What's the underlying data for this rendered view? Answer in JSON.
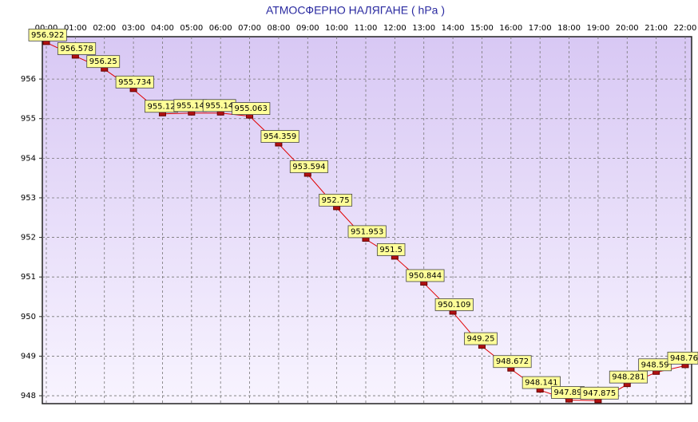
{
  "chart_data": {
    "type": "line",
    "title": "АТМОСФЕРНО НАЛЯГАНЕ  ( hPa )",
    "categories": [
      "00:00",
      "01:00",
      "02:00",
      "03:00",
      "04:00",
      "05:00",
      "06:00",
      "07:00",
      "08:00",
      "09:00",
      "10:00",
      "11:00",
      "12:00",
      "13:00",
      "14:00",
      "15:00",
      "16:00",
      "17:00",
      "18:00",
      "19:00",
      "20:00",
      "21:00",
      "22:00"
    ],
    "series": [
      {
        "name": "hPa",
        "color": "#e00000",
        "values": [
          956.922,
          956.578,
          956.25,
          955.734,
          955.12,
          955.14,
          955.14,
          955.063,
          954.359,
          953.594,
          952.75,
          951.953,
          951.5,
          950.844,
          950.109,
          949.25,
          948.672,
          948.141,
          947.89,
          947.875,
          948.281,
          948.59,
          948.76
        ]
      }
    ],
    "ylim": [
      947.8,
      957.07
    ],
    "yticks": [
      948,
      949,
      950,
      951,
      952,
      953,
      954,
      955,
      956
    ],
    "grid": true
  }
}
